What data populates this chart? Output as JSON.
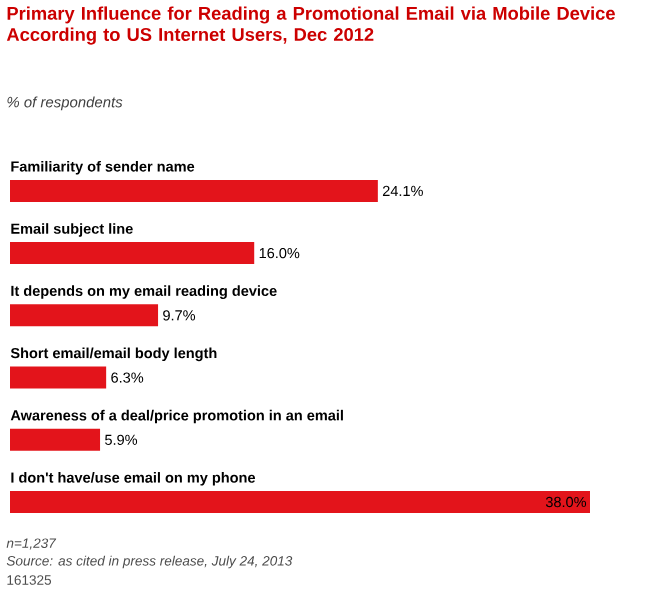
{
  "chart_data": {
    "type": "bar",
    "orientation": "horizontal",
    "title": "Primary Influence for Reading a Promotional Email via Mobile Device According to US Internet Users, Dec 2012",
    "subtitle": "% of respondents",
    "categories": [
      "Familiarity of sender name",
      "Email subject line",
      "It depends on my email reading device",
      "Short email/email body length",
      "Awareness of a deal/price promotion in an email",
      "I don't have/use email on my phone"
    ],
    "values": [
      24.1,
      16.0,
      9.7,
      6.3,
      5.9,
      38.0
    ],
    "value_labels": [
      "24.1%",
      "16.0%",
      "9.7%",
      "6.3%",
      "5.9%",
      "38.0%"
    ],
    "color": "#e3141b",
    "annotations": [
      "n=1,237",
      "Source: as cited in press release, July 24, 2013",
      "161325"
    ]
  }
}
